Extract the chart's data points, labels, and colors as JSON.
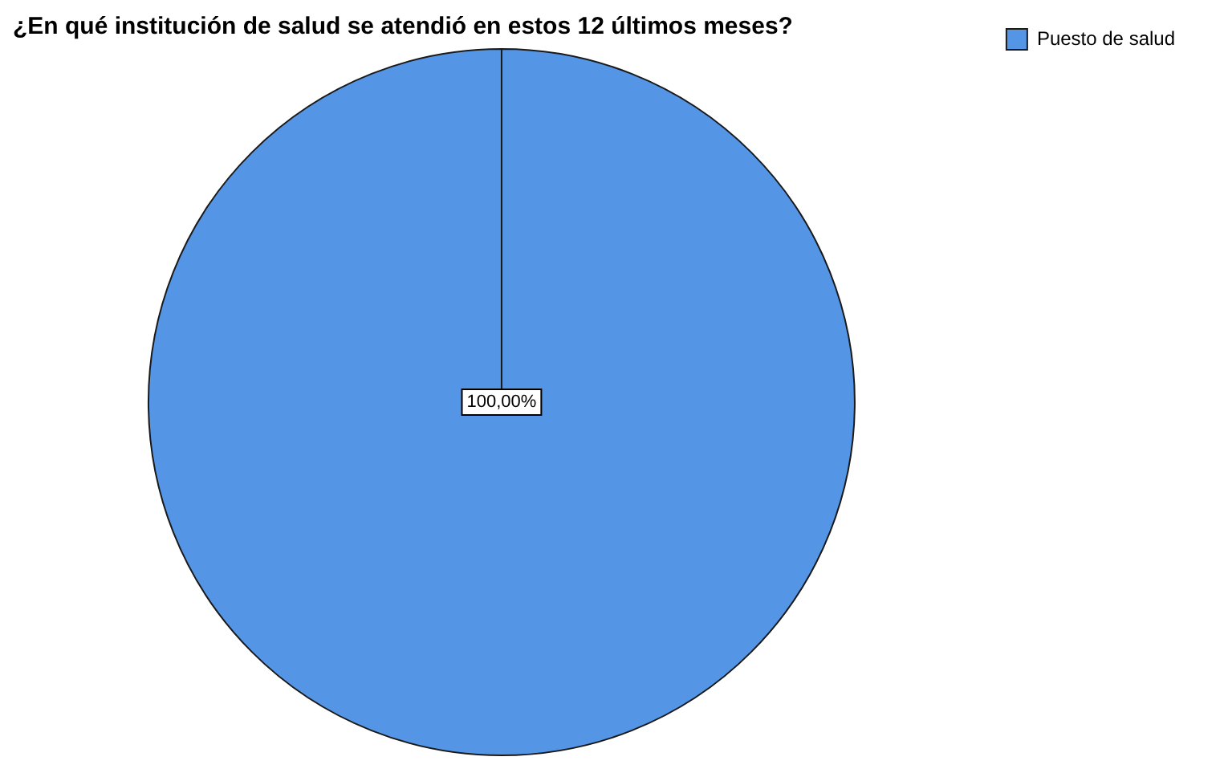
{
  "chart_data": {
    "type": "pie",
    "title": "¿En qué institución de salud se atendió en estos 12 últimos meses?",
    "categories": [
      "Puesto de salud"
    ],
    "values": [
      100
    ],
    "colors": [
      "#5595e5"
    ],
    "value_labels": [
      "100,00%"
    ],
    "legend": "top right"
  }
}
